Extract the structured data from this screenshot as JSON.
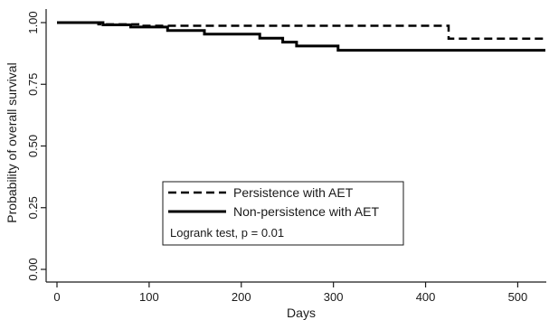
{
  "chart_data": {
    "type": "line",
    "subtype": "step",
    "xlabel": "Days",
    "ylabel": "Probability of overall survival",
    "xlim": [
      0,
      530
    ],
    "ylim": [
      0,
      1
    ],
    "x_ticks": [
      0,
      100,
      200,
      300,
      400,
      500
    ],
    "y_ticks": [
      0,
      0.25,
      0.5,
      0.75,
      1
    ],
    "y_tick_labels": [
      "0.00",
      "0.25",
      "0.50",
      "0.75",
      "1.00"
    ],
    "grid": false,
    "legend_position": "lower-center",
    "annotation": "Logrank test, p = 0.01",
    "series": [
      {
        "name": "Persistence with AET",
        "style": "dashed",
        "points": [
          [
            0,
            1.0
          ],
          [
            45,
            1.0
          ],
          [
            45,
            0.993
          ],
          [
            90,
            0.993
          ],
          [
            90,
            0.987
          ],
          [
            425,
            0.987
          ],
          [
            425,
            0.935
          ],
          [
            530,
            0.935
          ]
        ]
      },
      {
        "name": "Non-persistence with AET",
        "style": "solid",
        "points": [
          [
            0,
            1.0
          ],
          [
            50,
            1.0
          ],
          [
            50,
            0.991
          ],
          [
            80,
            0.991
          ],
          [
            80,
            0.982
          ],
          [
            120,
            0.982
          ],
          [
            120,
            0.968
          ],
          [
            160,
            0.968
          ],
          [
            160,
            0.953
          ],
          [
            220,
            0.953
          ],
          [
            220,
            0.937
          ],
          [
            245,
            0.937
          ],
          [
            245,
            0.921
          ],
          [
            260,
            0.921
          ],
          [
            260,
            0.905
          ],
          [
            305,
            0.905
          ],
          [
            305,
            0.888
          ],
          [
            530,
            0.888
          ]
        ]
      }
    ]
  }
}
